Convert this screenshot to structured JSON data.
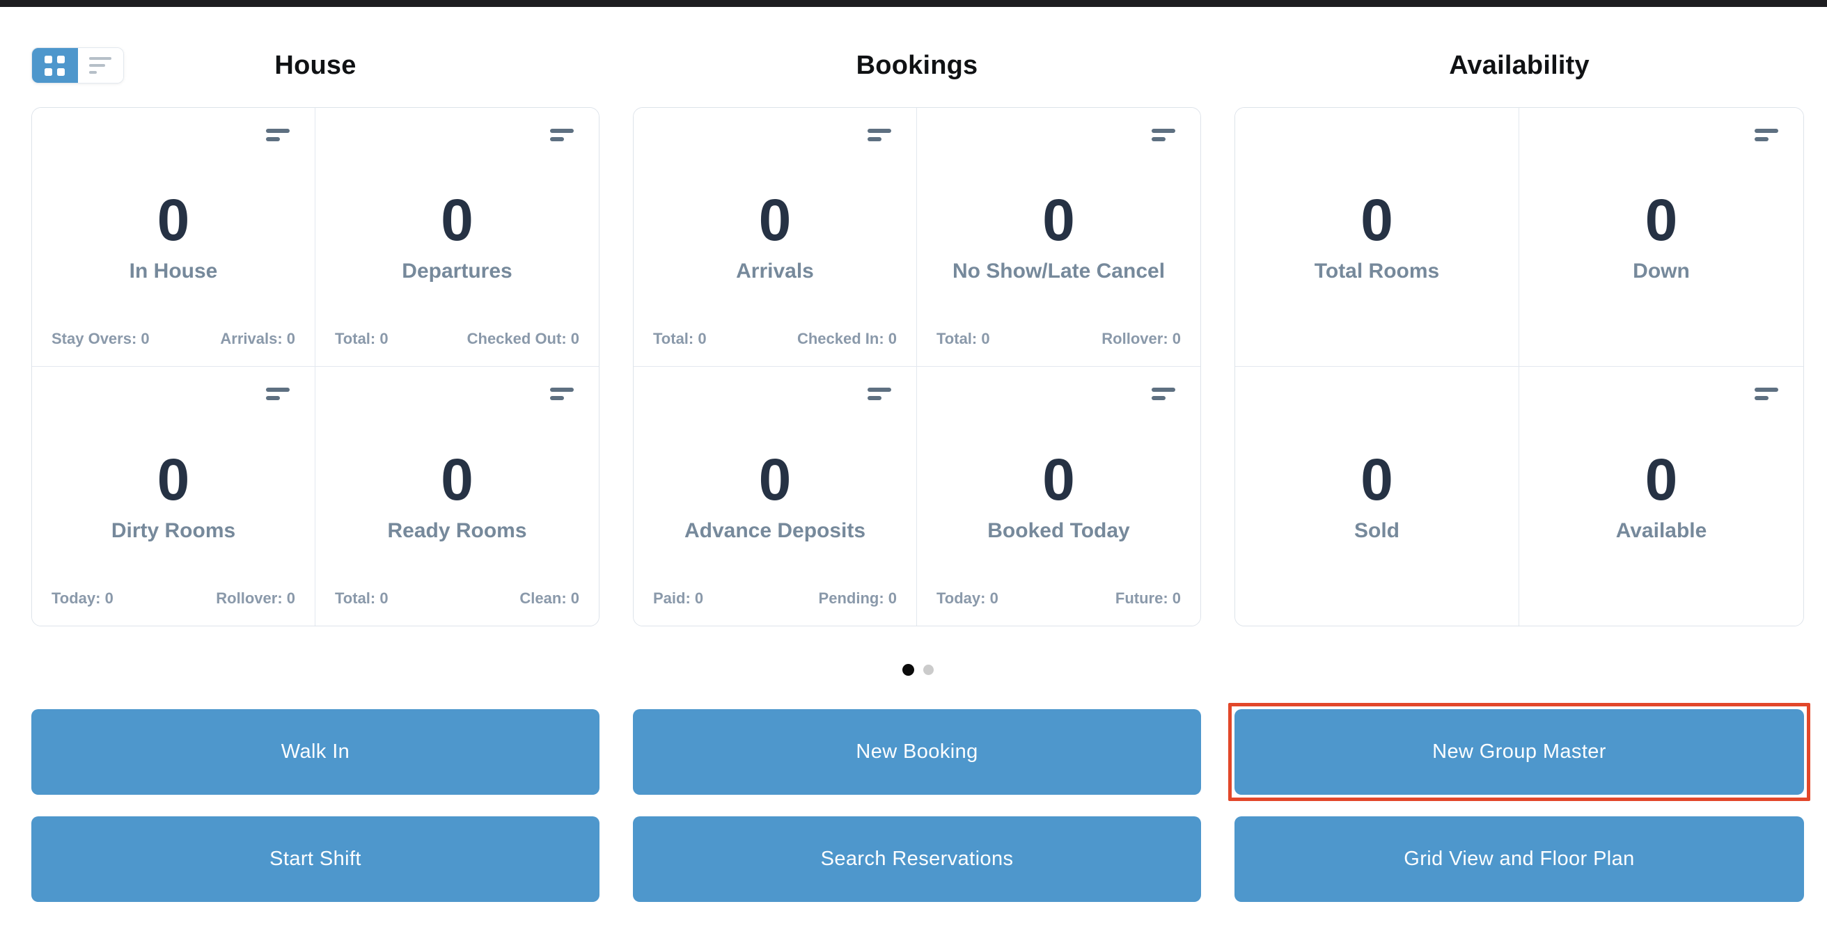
{
  "view_toggle": {
    "selected": "grid",
    "options": [
      "grid",
      "list"
    ]
  },
  "sections": [
    {
      "title": "House",
      "cards": [
        {
          "value": "0",
          "label": "In House",
          "has_icon": true,
          "footer": {
            "left": "Stay Overs: 0",
            "right": "Arrivals: 0"
          }
        },
        {
          "value": "0",
          "label": "Departures",
          "has_icon": true,
          "footer": {
            "left": "Total: 0",
            "right": "Checked Out: 0"
          }
        },
        {
          "value": "0",
          "label": "Dirty Rooms",
          "has_icon": true,
          "footer": {
            "left": "Today: 0",
            "right": "Rollover: 0"
          }
        },
        {
          "value": "0",
          "label": "Ready Rooms",
          "has_icon": true,
          "footer": {
            "left": "Total: 0",
            "right": "Clean: 0"
          }
        }
      ]
    },
    {
      "title": "Bookings",
      "cards": [
        {
          "value": "0",
          "label": "Arrivals",
          "has_icon": true,
          "footer": {
            "left": "Total: 0",
            "right": "Checked In: 0"
          }
        },
        {
          "value": "0",
          "label": "No Show/Late Cancel",
          "has_icon": true,
          "footer": {
            "left": "Total: 0",
            "right": "Rollover: 0"
          }
        },
        {
          "value": "0",
          "label": "Advance Deposits",
          "has_icon": true,
          "footer": {
            "left": "Paid: 0",
            "right": "Pending: 0"
          }
        },
        {
          "value": "0",
          "label": "Booked Today",
          "has_icon": true,
          "footer": {
            "left": "Today: 0",
            "right": "Future: 0"
          }
        }
      ]
    },
    {
      "title": "Availability",
      "cards": [
        {
          "value": "0",
          "label": "Total Rooms",
          "has_icon": false,
          "footer": null
        },
        {
          "value": "0",
          "label": "Down",
          "has_icon": true,
          "footer": null
        },
        {
          "value": "0",
          "label": "Sold",
          "has_icon": false,
          "footer": null
        },
        {
          "value": "0",
          "label": "Available",
          "has_icon": true,
          "footer": null
        }
      ]
    }
  ],
  "pagination": {
    "dots": [
      {
        "active": true
      },
      {
        "active": false
      }
    ]
  },
  "buttons": [
    {
      "label": "Walk In",
      "highlighted": false
    },
    {
      "label": "New Booking",
      "highlighted": false
    },
    {
      "label": "New Group Master",
      "highlighted": true
    },
    {
      "label": "Start Shift",
      "highlighted": false
    },
    {
      "label": "Search Reservations",
      "highlighted": false
    },
    {
      "label": "Grid View and Floor Plan",
      "highlighted": false
    }
  ],
  "colors": {
    "accent_blue": "#4e97cc",
    "annotation_red": "#e2472a",
    "topbar_black": "#1d1d20",
    "stat_number": "#263244",
    "stat_label": "#76899b",
    "stat_footer": "#8a99aa",
    "card_border": "#dde3ea",
    "active_dot": "#0b0b0b",
    "inactive_dot": "#cbcbcb"
  }
}
